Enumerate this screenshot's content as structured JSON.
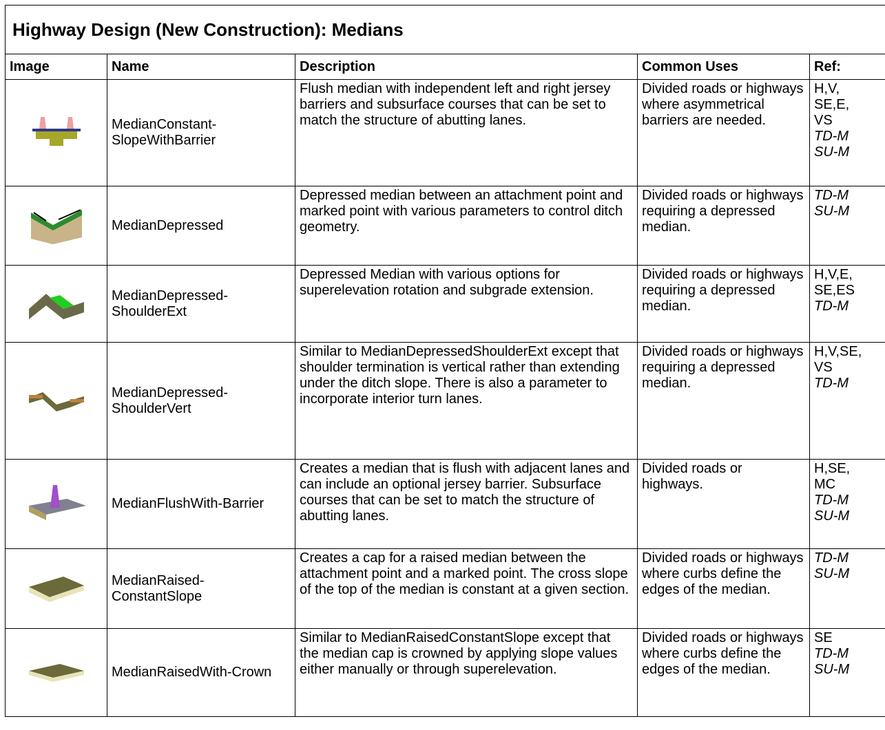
{
  "header": {
    "title": "Highway Design (New Construction): Medians"
  },
  "table": {
    "columns": [
      "Image",
      "Name",
      "Description",
      "Common Uses",
      "Ref:"
    ],
    "rows": [
      {
        "name": "MedianConstant-SlopeWithBarrier",
        "description": "Flush median with independent left and right jersey barriers and subsurface courses that can be set to match the structure of abutting lanes.",
        "uses": "Divided roads or highways where asymmetrical barriers are needed.",
        "ref": {
          "plain": [
            "H,V,",
            "SE,E,",
            "VS"
          ],
          "italic": [
            "TD-M",
            "SU-M"
          ]
        }
      },
      {
        "name": "MedianDepressed",
        "description": "Depressed median between an attachment point and marked point with various parameters to control ditch geometry.",
        "uses": "Divided roads or highways requiring a depressed median.",
        "ref": {
          "plain": [],
          "italic": [
            "TD-M",
            "SU-M"
          ]
        }
      },
      {
        "name": "MedianDepressed-ShoulderExt",
        "description": "Depressed Median with various options for superelevation rotation and subgrade extension.",
        "uses": "Divided roads or highways requiring a depressed median.",
        "ref": {
          "plain": [
            "H,V,E,",
            "SE,ES"
          ],
          "italic": [
            "TD-M"
          ]
        }
      },
      {
        "name": "MedianDepressed-ShoulderVert",
        "description": "Similar to MedianDepressedShoulderExt except that shoulder termination is vertical rather than extending under the ditch slope. There is also a parameter to incorporate interior turn lanes.",
        "uses": "Divided roads or highways requiring a depressed median.",
        "ref": {
          "plain": [
            "H,V,SE,",
            "VS"
          ],
          "italic": [
            "TD-M"
          ]
        }
      },
      {
        "name": "MedianFlushWith-Barrier",
        "description": "Creates a median that is flush with adjacent lanes and can include an optional jersey barrier.  Subsurface courses that can be set to match the structure of abutting lanes.",
        "uses": "Divided roads or highways.",
        "ref": {
          "plain": [
            "H,SE,",
            "MC"
          ],
          "italic": [
            "TD-M",
            "SU-M"
          ]
        }
      },
      {
        "name": "MedianRaised-ConstantSlope",
        "description": "Creates a cap for a raised median between the attachment point and a marked point. The cross slope of the top of the median is constant at a given section.",
        "uses": "Divided roads or highways where curbs define the edges of the median.",
        "ref": {
          "plain": [],
          "italic": [
            "TD-M",
            "SU-M"
          ]
        }
      },
      {
        "name": "MedianRaisedWith-Crown",
        "description": "Similar to MedianRaisedConstantSlope except that the median cap is crowned by applying slope values either manually or through superelevation.",
        "uses": "Divided roads or highways where curbs define the edges of the median.",
        "ref": {
          "plain": [
            "SE"
          ],
          "italic": [
            "TD-M",
            "SU-M"
          ]
        }
      }
    ]
  }
}
